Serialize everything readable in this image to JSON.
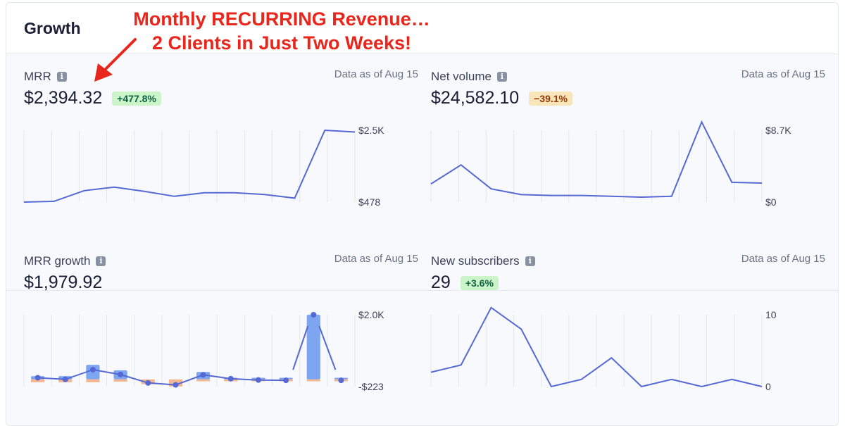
{
  "header": {
    "title": "Growth"
  },
  "annotation": {
    "line1": "Monthly RECURRING Revenue…",
    "line2": "2 Clients in Just Two Weeks!"
  },
  "colors": {
    "line": "#5469d4",
    "bar_positive": "#7ea6f0",
    "bar_negative": "#f3b791",
    "annotation": "#e8261c"
  },
  "panels": [
    {
      "label": "MRR",
      "asof": "Data as of Aug 15",
      "value": "$2,394.32",
      "badge": "+477.8%",
      "badge_type": "up"
    },
    {
      "label": "Net volume",
      "asof": "Data as of Aug 15",
      "value": "$24,582.10",
      "badge": "−39.1%",
      "badge_type": "down"
    },
    {
      "label": "MRR growth",
      "asof": "Data as of Aug 15",
      "value": "$1,979.92",
      "badge": "",
      "badge_type": ""
    },
    {
      "label": "New subscribers",
      "asof": "Data as of Aug 15",
      "value": "29",
      "badge": "+3.6%",
      "badge_type": "up"
    }
  ],
  "chart_data": [
    {
      "type": "line",
      "name": "MRR",
      "ytick_labels": [
        "$2.5K",
        "$478"
      ],
      "ylim": [
        478,
        2500
      ],
      "values": [
        478,
        500,
        800,
        900,
        780,
        640,
        740,
        740,
        690,
        590,
        2500,
        2450
      ]
    },
    {
      "type": "line",
      "name": "Net volume",
      "ytick_labels": [
        "$8.7K",
        "$0"
      ],
      "ylim": [
        0,
        8700
      ],
      "values": [
        2200,
        4500,
        1600,
        900,
        800,
        800,
        700,
        600,
        700,
        9700,
        2400,
        2300
      ]
    },
    {
      "type": "bar",
      "name": "MRR growth",
      "ytick_labels": [
        "$2.0K",
        "-$223"
      ],
      "ylim": [
        -223,
        2000
      ],
      "positive": [
        100,
        100,
        450,
        280,
        0,
        0,
        230,
        50,
        50,
        50,
        2000,
        50
      ],
      "negative": [
        -90,
        -90,
        -90,
        -70,
        -150,
        -220,
        -60,
        -60,
        -60,
        -60,
        -60,
        -60
      ],
      "net": [
        50,
        0,
        300,
        150,
        -110,
        -170,
        140,
        20,
        -20,
        -30,
        2000,
        -30
      ]
    },
    {
      "type": "line",
      "name": "New subscribers",
      "ytick_labels": [
        "10",
        "0"
      ],
      "ylim": [
        0,
        10
      ],
      "values": [
        2,
        3,
        11,
        8,
        0,
        1,
        4,
        0,
        1,
        0,
        1,
        0
      ]
    }
  ]
}
